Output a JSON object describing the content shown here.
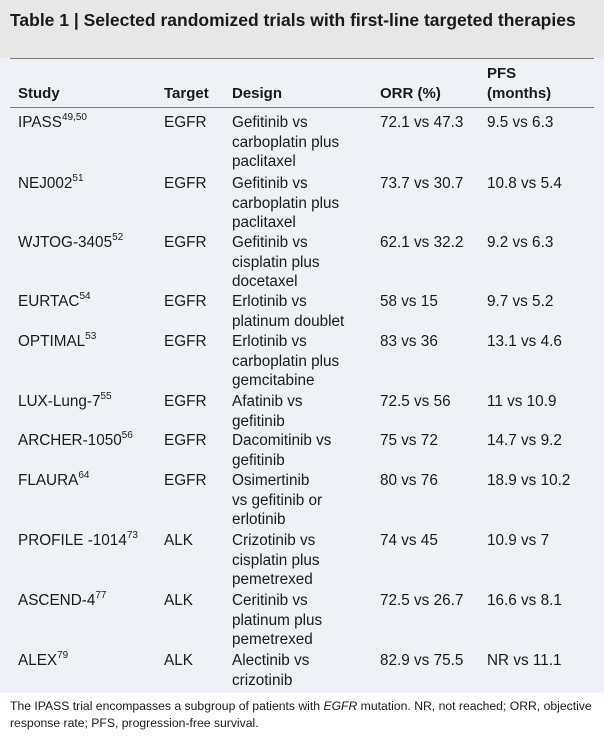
{
  "table": {
    "title": "Table 1 | Selected randomized trials with first-line targeted therapies",
    "headers": {
      "study": "Study",
      "target": "Target",
      "design": "Design",
      "orr": "ORR (%)",
      "pfs_line1": "PFS",
      "pfs_line2": "(months)"
    },
    "rows": [
      {
        "study": "IPASS",
        "ref": "49,50",
        "target": "EGFR",
        "design": [
          "Gefitinib vs",
          "carboplatin plus",
          "paclitaxel"
        ],
        "orr": "72.1 vs 47.3",
        "pfs": "9.5 vs 6.3"
      },
      {
        "study": "NEJ002",
        "ref": "51",
        "target": "EGFR",
        "design": [
          "Gefitinib vs",
          "carboplatin plus",
          "paclitaxel"
        ],
        "orr": "73.7 vs 30.7",
        "pfs": "10.8 vs 5.4"
      },
      {
        "study": "WJTOG-3405",
        "ref": "52",
        "target": "EGFR",
        "design": [
          "Gefitinib vs",
          "cisplatin plus",
          "docetaxel"
        ],
        "orr": "62.1 vs 32.2",
        "pfs": "9.2 vs 6.3"
      },
      {
        "study": "EURTAC",
        "ref": "54",
        "target": "EGFR",
        "design": [
          "Erlotinib vs",
          "platinum doublet"
        ],
        "orr": "58 vs 15",
        "pfs": "9.7 vs 5.2"
      },
      {
        "study": "OPTIMAL",
        "ref": "53",
        "target": "EGFR",
        "design": [
          "Erlotinib vs",
          "carboplatin plus",
          "gemcitabine"
        ],
        "orr": "83 vs 36",
        "pfs": "13.1 vs 4.6"
      },
      {
        "study": "LUX-Lung-7",
        "ref": "55",
        "target": "EGFR",
        "design": [
          "Afatinib vs",
          "gefitinib"
        ],
        "orr": "72.5 vs 56",
        "pfs": "11 vs 10.9"
      },
      {
        "study": "ARCHER-1050",
        "ref": "56",
        "target": "EGFR",
        "design": [
          "Dacomitinib vs",
          "gefitinib"
        ],
        "orr": "75 vs 72",
        "pfs": "14.7 vs 9.2"
      },
      {
        "study": "FLAURA",
        "ref": "64",
        "target": "EGFR",
        "design": [
          "Osimertinib",
          "vs gefitinib or",
          "erlotinib"
        ],
        "orr": "80 vs 76",
        "pfs": "18.9 vs 10.2"
      },
      {
        "study": "PROFILE -1014",
        "ref": "73",
        "target": "ALK",
        "design": [
          "Crizotinib vs",
          "cisplatin plus",
          "pemetrexed"
        ],
        "orr": "74 vs 45",
        "pfs": "10.9 vs 7"
      },
      {
        "study": "ASCEND-4",
        "ref": "77",
        "target": "ALK",
        "design": [
          "Ceritinib vs",
          "platinum plus",
          "pemetrexed"
        ],
        "orr": "72.5 vs 26.7",
        "pfs": "16.6 vs 8.1"
      },
      {
        "study": "ALEX",
        "ref": "79",
        "target": "ALK",
        "design": [
          "Alectinib vs",
          "crizotinib"
        ],
        "orr": "82.9 vs 75.5",
        "pfs": "NR vs 11.1"
      }
    ],
    "footnote": {
      "part1": "The IPASS trial encompasses a subgroup of patients with ",
      "italic": "EGFR",
      "part2": " mutation. NR, not reached; ORR, objective response rate; PFS, progression-free survival."
    }
  }
}
